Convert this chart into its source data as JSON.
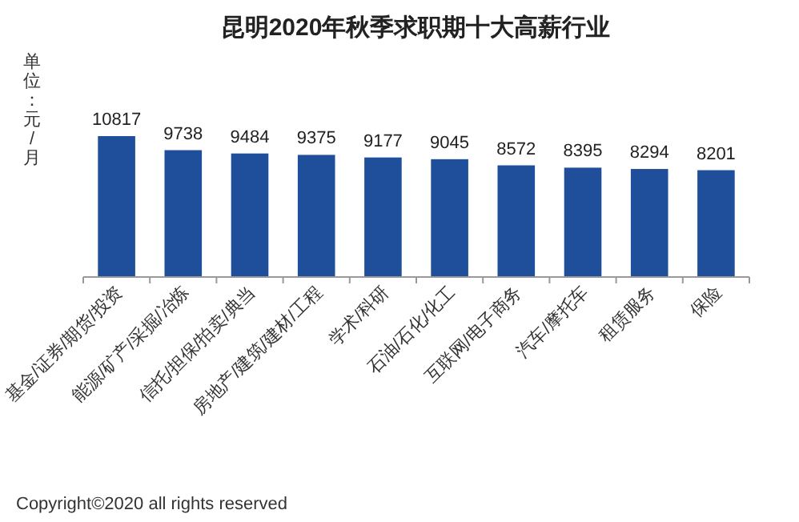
{
  "chart_data": {
    "type": "bar",
    "title": "昆明2020年秋季求职期十大高薪行业",
    "ylabel": "单位：元/月",
    "categories": [
      "基金/证券/期货/投资",
      "能源/矿产/采掘/冶炼",
      "信托/担保/拍卖/典当",
      "房地产/建筑/建材/工程",
      "学术/科研",
      "石油/石化/化工",
      "互联网/电子商务",
      "汽车/摩托车",
      "租赁服务",
      "保险"
    ],
    "values": [
      10817,
      9738,
      9484,
      9375,
      9177,
      9045,
      8572,
      8395,
      8294,
      8201
    ],
    "color": "#1f4e9a",
    "data_labels": true,
    "annotations": [
      "Copyright©2020 all rights reserved"
    ]
  }
}
